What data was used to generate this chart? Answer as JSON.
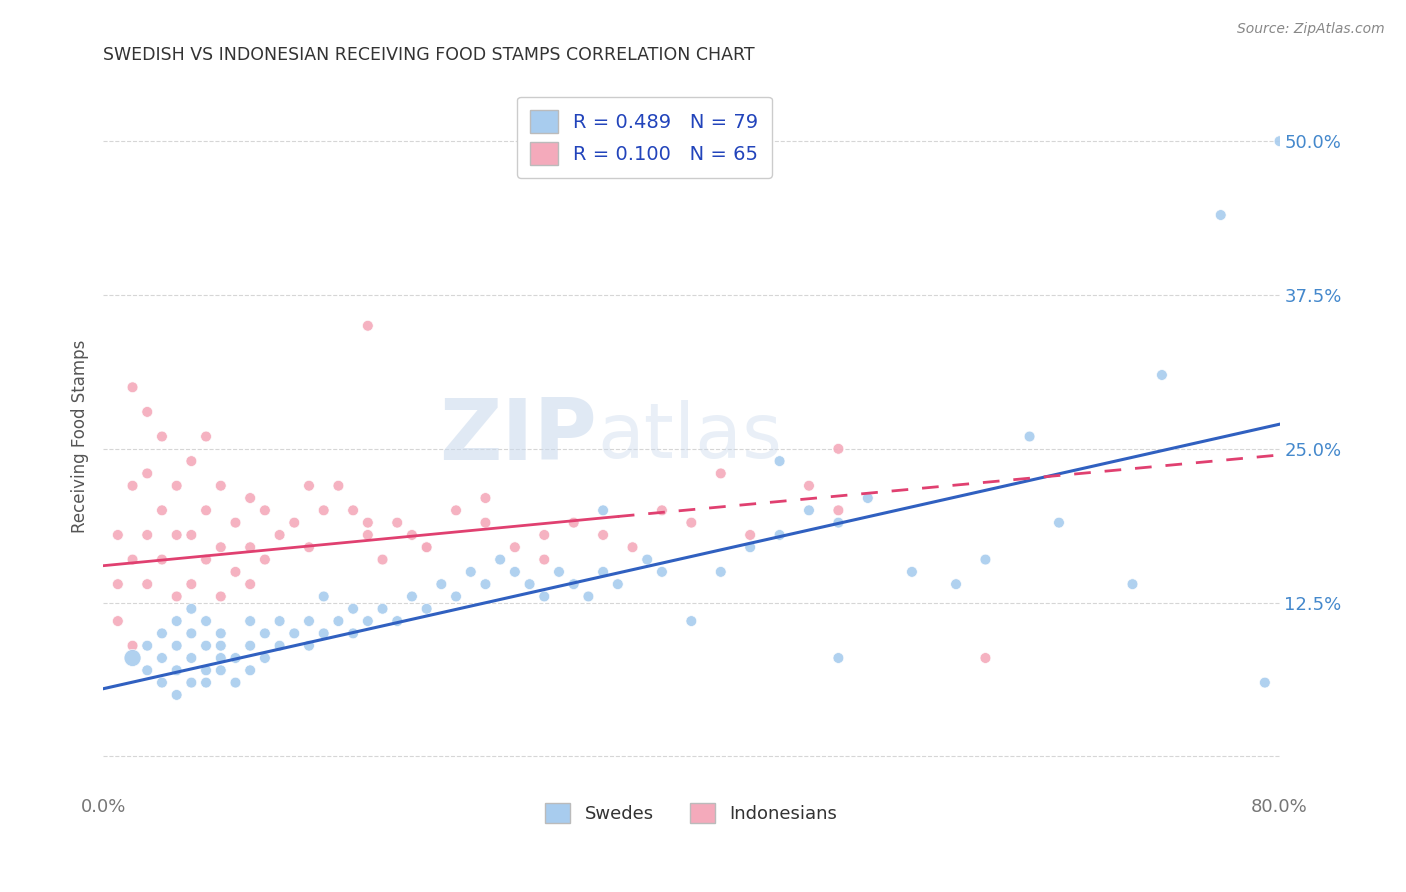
{
  "title": "SWEDISH VS INDONESIAN RECEIVING FOOD STAMPS CORRELATION CHART",
  "source": "Source: ZipAtlas.com",
  "ylabel": "Receiving Food Stamps",
  "xlim": [
    0.0,
    0.8
  ],
  "ylim": [
    -0.03,
    0.55
  ],
  "yticks": [
    0.0,
    0.125,
    0.25,
    0.375,
    0.5
  ],
  "ytick_labels": [
    "",
    "12.5%",
    "25.0%",
    "37.5%",
    "50.0%"
  ],
  "xtick_positions": [
    0.0,
    0.1,
    0.2,
    0.3,
    0.4,
    0.5,
    0.6,
    0.7,
    0.8
  ],
  "xtick_labels": [
    "0.0%",
    "",
    "",
    "",
    "",
    "",
    "",
    "",
    "80.0%"
  ],
  "r_swedish": 0.489,
  "n_swedish": 79,
  "r_indonesian": 0.1,
  "n_indonesian": 65,
  "swedish_color": "#A8CCEE",
  "indonesian_color": "#F4AABB",
  "swedish_line_color": "#3060C0",
  "indonesian_line_color": "#E04070",
  "watermark_zip": "ZIP",
  "watermark_atlas": "atlas",
  "legend_labels": [
    "Swedes",
    "Indonesians"
  ],
  "background_color": "#FFFFFF",
  "grid_color": "#CCCCCC",
  "swedish_x": [
    0.02,
    0.03,
    0.03,
    0.04,
    0.04,
    0.04,
    0.05,
    0.05,
    0.05,
    0.05,
    0.06,
    0.06,
    0.06,
    0.06,
    0.07,
    0.07,
    0.07,
    0.07,
    0.08,
    0.08,
    0.08,
    0.08,
    0.09,
    0.09,
    0.1,
    0.1,
    0.1,
    0.11,
    0.11,
    0.12,
    0.12,
    0.13,
    0.14,
    0.14,
    0.15,
    0.15,
    0.16,
    0.17,
    0.17,
    0.18,
    0.19,
    0.2,
    0.21,
    0.22,
    0.23,
    0.24,
    0.25,
    0.26,
    0.27,
    0.28,
    0.29,
    0.3,
    0.31,
    0.32,
    0.33,
    0.34,
    0.35,
    0.37,
    0.38,
    0.4,
    0.42,
    0.44,
    0.46,
    0.48,
    0.5,
    0.52,
    0.55,
    0.58,
    0.6,
    0.63,
    0.65,
    0.7,
    0.72,
    0.76,
    0.79,
    0.8,
    0.34,
    0.46,
    0.5
  ],
  "swedish_y": [
    0.08,
    0.07,
    0.09,
    0.06,
    0.08,
    0.1,
    0.05,
    0.07,
    0.09,
    0.11,
    0.06,
    0.08,
    0.1,
    0.12,
    0.07,
    0.09,
    0.11,
    0.06,
    0.08,
    0.1,
    0.07,
    0.09,
    0.06,
    0.08,
    0.07,
    0.09,
    0.11,
    0.08,
    0.1,
    0.09,
    0.11,
    0.1,
    0.09,
    0.11,
    0.1,
    0.13,
    0.11,
    0.1,
    0.12,
    0.11,
    0.12,
    0.11,
    0.13,
    0.12,
    0.14,
    0.13,
    0.15,
    0.14,
    0.16,
    0.15,
    0.14,
    0.13,
    0.15,
    0.14,
    0.13,
    0.15,
    0.14,
    0.16,
    0.15,
    0.11,
    0.15,
    0.17,
    0.18,
    0.2,
    0.19,
    0.21,
    0.15,
    0.14,
    0.16,
    0.26,
    0.19,
    0.14,
    0.31,
    0.44,
    0.06,
    0.5,
    0.2,
    0.24,
    0.08
  ],
  "swedish_size_big": [
    0,
    1,
    2,
    3,
    4,
    5,
    6,
    7,
    8,
    9,
    10
  ],
  "swedish_sizes": [
    150,
    60,
    60,
    60,
    60,
    60,
    60,
    60,
    60,
    60,
    60,
    60,
    60,
    60,
    60,
    60,
    60,
    60,
    60,
    60,
    60,
    60,
    60,
    60,
    60,
    60,
    60,
    60,
    60,
    60,
    60,
    60,
    60,
    60,
    60,
    60,
    60,
    60,
    60,
    60,
    60,
    60,
    60,
    60,
    60,
    60,
    60,
    60,
    60,
    60,
    60,
    60,
    60,
    60,
    60,
    60,
    60,
    60,
    60,
    60,
    60,
    60,
    60,
    60,
    60,
    60,
    60,
    60,
    60,
    60,
    60,
    60,
    60,
    60,
    60,
    60,
    60,
    60,
    60
  ],
  "indonesian_x": [
    0.01,
    0.01,
    0.01,
    0.02,
    0.02,
    0.02,
    0.02,
    0.03,
    0.03,
    0.03,
    0.03,
    0.04,
    0.04,
    0.04,
    0.05,
    0.05,
    0.05,
    0.06,
    0.06,
    0.06,
    0.07,
    0.07,
    0.07,
    0.08,
    0.08,
    0.08,
    0.09,
    0.09,
    0.1,
    0.1,
    0.1,
    0.11,
    0.11,
    0.12,
    0.13,
    0.14,
    0.15,
    0.16,
    0.17,
    0.18,
    0.19,
    0.2,
    0.21,
    0.22,
    0.24,
    0.26,
    0.28,
    0.3,
    0.32,
    0.34,
    0.36,
    0.38,
    0.4,
    0.44,
    0.48,
    0.5,
    0.14,
    0.18,
    0.22,
    0.26,
    0.3,
    0.18,
    0.42,
    0.5,
    0.6
  ],
  "indonesian_y": [
    0.14,
    0.18,
    0.11,
    0.3,
    0.22,
    0.16,
    0.09,
    0.18,
    0.23,
    0.28,
    0.14,
    0.2,
    0.26,
    0.16,
    0.22,
    0.18,
    0.13,
    0.24,
    0.18,
    0.14,
    0.2,
    0.16,
    0.26,
    0.22,
    0.17,
    0.13,
    0.19,
    0.15,
    0.21,
    0.17,
    0.14,
    0.2,
    0.16,
    0.18,
    0.19,
    0.17,
    0.2,
    0.22,
    0.2,
    0.18,
    0.16,
    0.19,
    0.18,
    0.17,
    0.2,
    0.19,
    0.17,
    0.18,
    0.19,
    0.18,
    0.17,
    0.2,
    0.19,
    0.18,
    0.22,
    0.2,
    0.22,
    0.19,
    0.17,
    0.21,
    0.16,
    0.35,
    0.23,
    0.25,
    0.08
  ],
  "indonesian_sizes": [
    60,
    60,
    60,
    60,
    60,
    60,
    60,
    60,
    60,
    60,
    60,
    60,
    60,
    60,
    60,
    60,
    60,
    60,
    60,
    60,
    60,
    60,
    60,
    60,
    60,
    60,
    60,
    60,
    60,
    60,
    60,
    60,
    60,
    60,
    60,
    60,
    60,
    60,
    60,
    60,
    60,
    60,
    60,
    60,
    60,
    60,
    60,
    60,
    60,
    60,
    60,
    60,
    60,
    60,
    60,
    60,
    60,
    60,
    60,
    60,
    60,
    60,
    60,
    60,
    60
  ]
}
